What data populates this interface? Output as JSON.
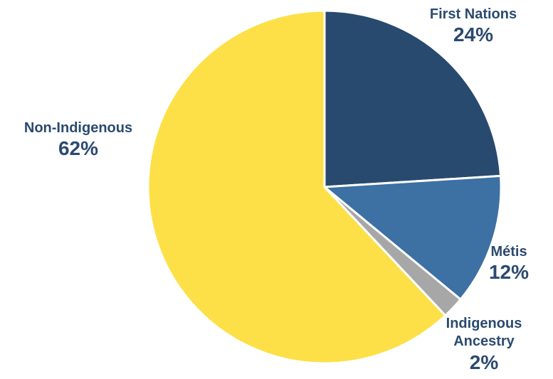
{
  "chart_data": {
    "type": "pie",
    "slices": [
      {
        "name": "First Nations",
        "value": 24,
        "label": "24%",
        "color": "#284a6e"
      },
      {
        "name": "Métis",
        "value": 12,
        "label": "12%",
        "color": "#3d70a3"
      },
      {
        "name": "Indigenous Ancestry",
        "value": 2,
        "label": "2%",
        "color": "#a7a7a7"
      },
      {
        "name": "Non-Indigenous",
        "value": 62,
        "label": "62%",
        "color": "#fde047"
      }
    ]
  }
}
